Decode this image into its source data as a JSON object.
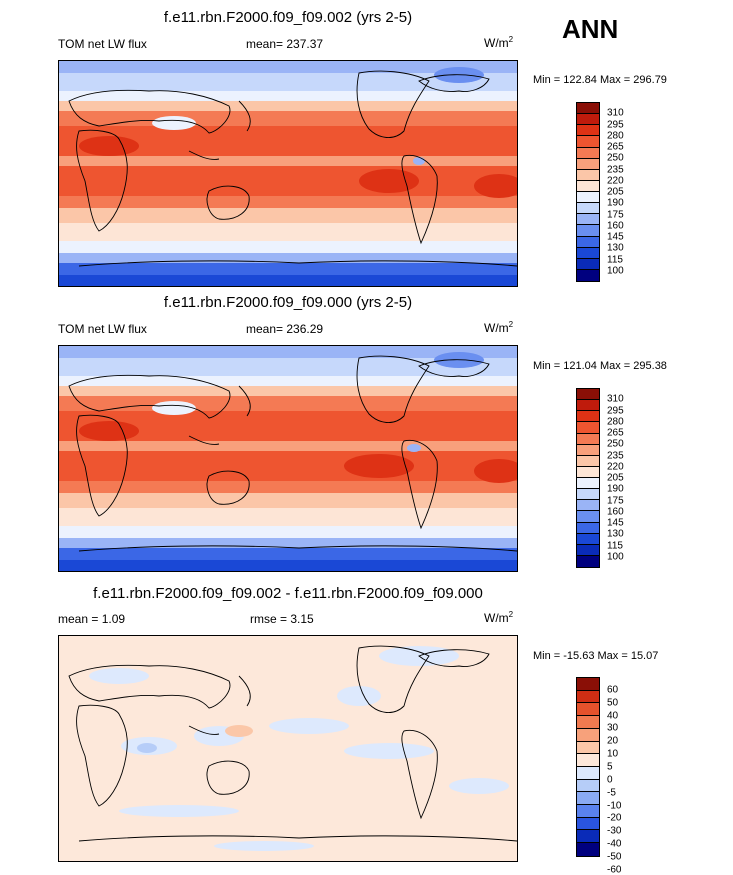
{
  "season": "ANN",
  "colors": {
    "abs": [
      "#00007f",
      "#0a2bb8",
      "#1a48d6",
      "#3b67e6",
      "#6a8ff0",
      "#9ab4f6",
      "#c6d8fb",
      "#ecf2fe",
      "#fde5d6",
      "#fbc6a8",
      "#f8a07c",
      "#f47a54",
      "#ee5530",
      "#de3215",
      "#bf1b0c",
      "#8a0f06"
    ],
    "diff": [
      "#00007f",
      "#0a2bb8",
      "#2a55e0",
      "#5a82ee",
      "#8aaaf3",
      "#b6cdf8",
      "#dde9fd",
      "#fde8da",
      "#fbc7a8",
      "#f7a17b",
      "#f17a50",
      "#e5522c",
      "#cf2e14",
      "#8a0f06"
    ]
  },
  "panels": [
    {
      "title": "f.e11.rbn.F2000.f09_f09.002 (yrs 2-5)",
      "left_label": "TOM net LW flux",
      "center_label": "mean= 237.37",
      "units": "W/m",
      "units_sup": "2",
      "minmax": "Min = 122.84 Max = 296.79",
      "ticks": [
        "310",
        "295",
        "280",
        "265",
        "250",
        "235",
        "220",
        "205",
        "190",
        "175",
        "160",
        "145",
        "130",
        "115",
        "100"
      ]
    },
    {
      "title": "f.e11.rbn.F2000.f09_f09.000 (yrs 2-5)",
      "left_label": "TOM net LW flux",
      "center_label": "mean= 236.29",
      "units": "W/m",
      "units_sup": "2",
      "minmax": "Min = 121.04 Max = 295.38",
      "ticks": [
        "310",
        "295",
        "280",
        "265",
        "250",
        "235",
        "220",
        "205",
        "190",
        "175",
        "160",
        "145",
        "130",
        "115",
        "100"
      ]
    },
    {
      "title": "f.e11.rbn.F2000.f09_f09.002 - f.e11.rbn.F2000.f09_f09.000",
      "left_label": "mean =   1.09",
      "center_label": "rmse =   3.15",
      "units": "W/m",
      "units_sup": "2",
      "minmax": "Min = -15.63 Max =  15.07",
      "ticks": [
        "60",
        "50",
        "40",
        "30",
        "20",
        "10",
        "5",
        "0",
        "-5",
        "-10",
        "-20",
        "-30",
        "-40",
        "-50",
        "-60"
      ]
    }
  ]
}
